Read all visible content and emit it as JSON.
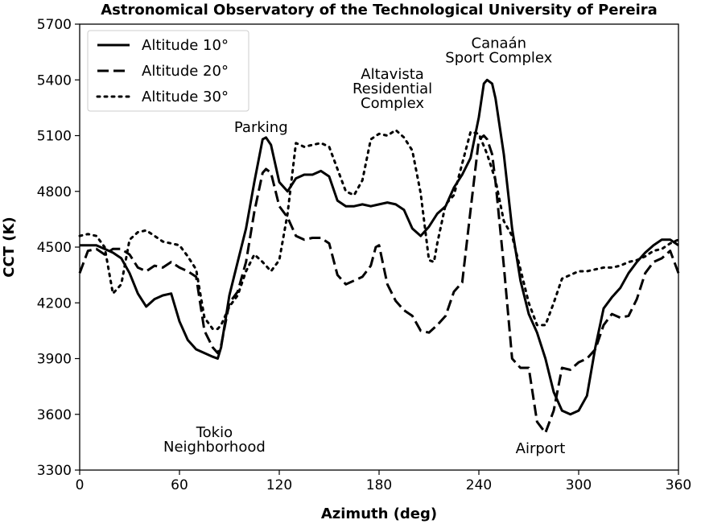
{
  "chart_data": {
    "type": "line",
    "title": "Astronomical Observatory of the Technological University of Pereira",
    "xlabel": "Azimuth (deg)",
    "ylabel": "CCT (K)",
    "xlim": [
      0,
      360
    ],
    "ylim": [
      3300,
      5700
    ],
    "xticks": [
      0,
      60,
      120,
      180,
      240,
      300,
      360
    ],
    "yticks": [
      3300,
      3600,
      3900,
      4200,
      4500,
      4800,
      5100,
      5400,
      5700
    ],
    "grid": false,
    "legend_position": "top-left",
    "series": [
      {
        "name": "Altitude 10°",
        "style": "solid",
        "color": "#000000",
        "x": [
          0,
          5,
          10,
          15,
          20,
          25,
          30,
          35,
          40,
          45,
          50,
          55,
          60,
          65,
          70,
          75,
          80,
          83,
          85,
          90,
          95,
          100,
          105,
          110,
          112,
          115,
          120,
          125,
          130,
          135,
          140,
          145,
          150,
          155,
          160,
          165,
          170,
          175,
          180,
          185,
          190,
          195,
          200,
          205,
          210,
          215,
          220,
          225,
          230,
          235,
          240,
          243,
          245,
          248,
          250,
          255,
          260,
          265,
          270,
          275,
          280,
          285,
          290,
          295,
          300,
          305,
          310,
          315,
          320,
          325,
          330,
          335,
          340,
          345,
          350,
          355,
          360
        ],
        "values": [
          4510,
          4510,
          4510,
          4490,
          4470,
          4440,
          4360,
          4250,
          4180,
          4220,
          4240,
          4250,
          4100,
          4000,
          3950,
          3930,
          3910,
          3900,
          3960,
          4240,
          4420,
          4600,
          4850,
          5080,
          5090,
          5050,
          4850,
          4800,
          4870,
          4890,
          4890,
          4910,
          4880,
          4750,
          4720,
          4720,
          4730,
          4720,
          4730,
          4740,
          4730,
          4700,
          4600,
          4560,
          4610,
          4680,
          4720,
          4820,
          4890,
          4980,
          5200,
          5380,
          5400,
          5380,
          5300,
          5000,
          4600,
          4320,
          4140,
          4040,
          3900,
          3720,
          3620,
          3600,
          3620,
          3700,
          3960,
          4170,
          4230,
          4280,
          4360,
          4420,
          4470,
          4510,
          4540,
          4540,
          4510
        ]
      },
      {
        "name": "Altitude 20°",
        "style": "dashed",
        "color": "#000000",
        "x": [
          0,
          5,
          10,
          15,
          20,
          25,
          30,
          35,
          40,
          45,
          50,
          55,
          60,
          65,
          70,
          75,
          80,
          83,
          85,
          90,
          95,
          100,
          105,
          110,
          112,
          115,
          120,
          125,
          130,
          135,
          140,
          145,
          150,
          155,
          160,
          165,
          170,
          175,
          178,
          180,
          185,
          190,
          195,
          200,
          205,
          210,
          215,
          220,
          225,
          230,
          235,
          240,
          243,
          245,
          248,
          250,
          255,
          260,
          265,
          270,
          275,
          280,
          285,
          290,
          295,
          300,
          305,
          310,
          315,
          320,
          325,
          330,
          335,
          340,
          345,
          350,
          355,
          360
        ],
        "values": [
          4360,
          4480,
          4490,
          4460,
          4490,
          4490,
          4460,
          4390,
          4370,
          4400,
          4390,
          4420,
          4390,
          4370,
          4340,
          4050,
          3960,
          3930,
          3970,
          4200,
          4260,
          4420,
          4690,
          4900,
          4920,
          4900,
          4720,
          4660,
          4560,
          4540,
          4550,
          4550,
          4520,
          4350,
          4300,
          4320,
          4340,
          4400,
          4500,
          4510,
          4300,
          4210,
          4160,
          4130,
          4050,
          4040,
          4080,
          4130,
          4260,
          4310,
          4700,
          5080,
          5100,
          5080,
          5000,
          4850,
          4400,
          3900,
          3850,
          3850,
          3560,
          3500,
          3620,
          3850,
          3840,
          3880,
          3900,
          3950,
          4080,
          4140,
          4120,
          4130,
          4220,
          4360,
          4420,
          4440,
          4480,
          4360
        ]
      },
      {
        "name": "Altitude 30°",
        "style": "dotted",
        "color": "#000000",
        "x": [
          0,
          5,
          10,
          15,
          20,
          25,
          30,
          35,
          40,
          45,
          50,
          55,
          60,
          65,
          70,
          75,
          80,
          83,
          85,
          90,
          95,
          100,
          105,
          110,
          115,
          120,
          125,
          130,
          135,
          140,
          145,
          150,
          155,
          160,
          165,
          170,
          175,
          180,
          185,
          190,
          195,
          200,
          205,
          210,
          213,
          215,
          220,
          225,
          230,
          235,
          240,
          245,
          250,
          255,
          260,
          265,
          270,
          275,
          280,
          285,
          290,
          295,
          300,
          305,
          310,
          315,
          320,
          325,
          330,
          335,
          340,
          345,
          350,
          355,
          360
        ],
        "values": [
          4560,
          4570,
          4560,
          4500,
          4250,
          4300,
          4540,
          4580,
          4590,
          4560,
          4530,
          4520,
          4510,
          4450,
          4380,
          4120,
          4060,
          4060,
          4080,
          4180,
          4240,
          4370,
          4460,
          4420,
          4370,
          4430,
          4680,
          5060,
          5040,
          5050,
          5060,
          5040,
          4920,
          4800,
          4780,
          4860,
          5080,
          5110,
          5100,
          5130,
          5090,
          5020,
          4790,
          4430,
          4420,
          4520,
          4730,
          4780,
          4950,
          5120,
          5110,
          5000,
          4860,
          4640,
          4560,
          4380,
          4200,
          4080,
          4080,
          4200,
          4330,
          4350,
          4370,
          4370,
          4380,
          4390,
          4390,
          4400,
          4420,
          4430,
          4450,
          4480,
          4490,
          4520,
          4540
        ]
      }
    ],
    "annotations": [
      {
        "lines": [
          "Parking"
        ],
        "x": 109,
        "y": 5120
      },
      {
        "lines": [
          "Altavista",
          "Residential",
          "Complex"
        ],
        "x": 188,
        "y": 5250
      },
      {
        "lines": [
          "Canaán",
          "Sport Complex"
        ],
        "x": 252,
        "y": 5495
      },
      {
        "lines": [
          "Tokio",
          "Neighborhood"
        ],
        "x": 81,
        "y": 3400
      },
      {
        "lines": [
          "Airport"
        ],
        "x": 277,
        "y": 3390
      }
    ]
  }
}
